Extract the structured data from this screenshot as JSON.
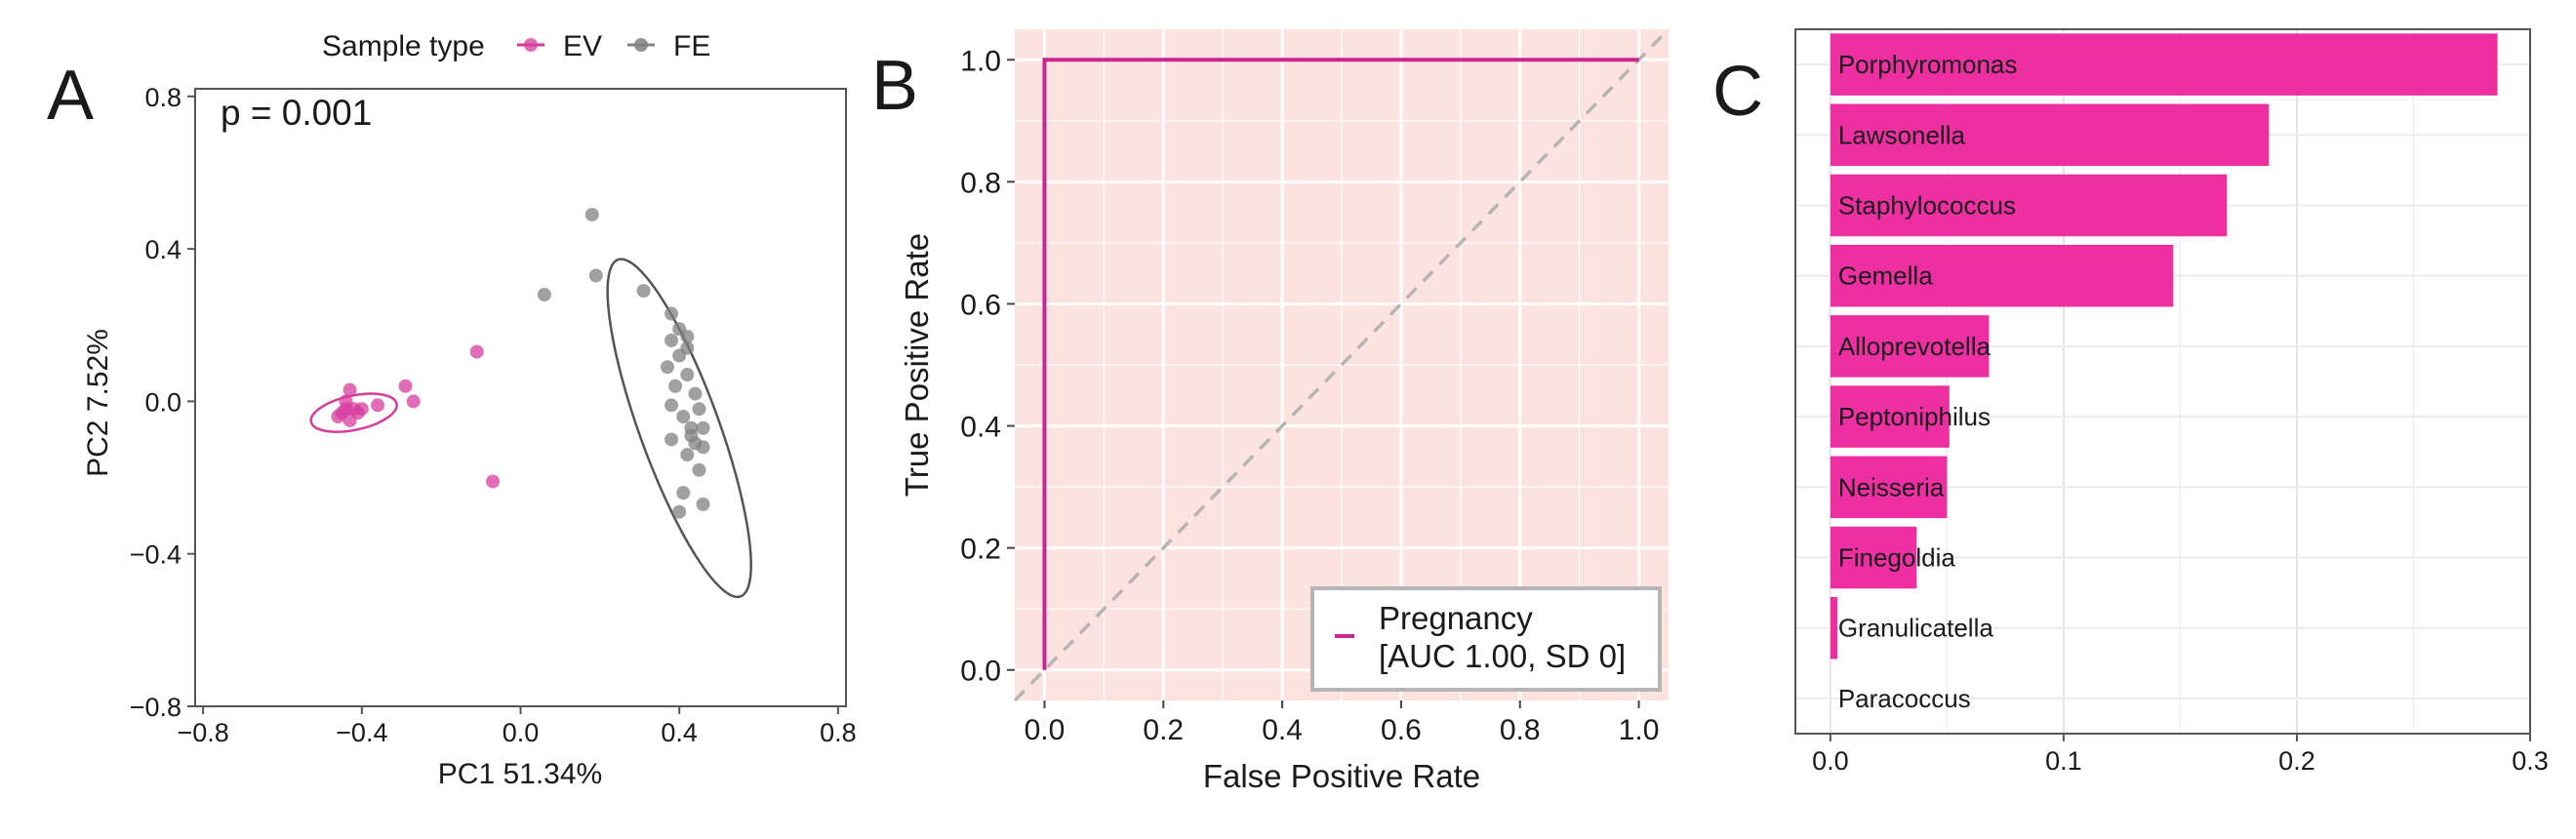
{
  "panels": {
    "A": {
      "letter": "A",
      "chart_data": {
        "type": "scatter",
        "title": "",
        "xlabel": "PC1 51.34%",
        "ylabel": "PC2 7.52%",
        "annotation": "p = 0.001",
        "xlim": [
          -0.82,
          0.82
        ],
        "ylim": [
          -0.8,
          0.82
        ],
        "xticks": [
          -0.8,
          -0.4,
          0.0,
          0.4,
          0.8
        ],
        "xtick_labels": [
          "−0.8",
          "−0.4",
          "0.0",
          "0.4",
          "0.8"
        ],
        "yticks": [
          -0.8,
          -0.4,
          0.0,
          0.4,
          0.8
        ],
        "ytick_labels": [
          "−0.8",
          "−0.4",
          "0.0",
          "0.4",
          "0.8"
        ],
        "grid": false,
        "legend": {
          "title": "Sample type",
          "placement": "top",
          "entries": [
            "EV",
            "FE"
          ]
        },
        "series": [
          {
            "name": "EV",
            "color": "#d63c9e",
            "points": [
              [
                -0.43,
                0.03
              ],
              [
                -0.44,
                0.0
              ],
              [
                -0.42,
                -0.02
              ],
              [
                -0.45,
                -0.03
              ],
              [
                -0.46,
                -0.04
              ],
              [
                -0.43,
                -0.05
              ],
              [
                -0.41,
                -0.03
              ],
              [
                -0.44,
                -0.02
              ],
              [
                -0.4,
                -0.02
              ],
              [
                -0.36,
                -0.01
              ],
              [
                -0.29,
                0.04
              ],
              [
                -0.27,
                0.0
              ],
              [
                -0.11,
                0.13
              ],
              [
                -0.07,
                -0.21
              ]
            ],
            "ellipse": {
              "cx": -0.42,
              "cy": -0.03,
              "rx": 0.11,
              "ry": 0.045,
              "angle_deg": -12
            }
          },
          {
            "name": "FE",
            "color": "#808080",
            "points": [
              [
                0.18,
                0.49
              ],
              [
                0.19,
                0.33
              ],
              [
                0.06,
                0.28
              ],
              [
                0.31,
                0.29
              ],
              [
                0.38,
                0.23
              ],
              [
                0.4,
                0.19
              ],
              [
                0.42,
                0.17
              ],
              [
                0.38,
                0.16
              ],
              [
                0.4,
                0.12
              ],
              [
                0.42,
                0.14
              ],
              [
                0.37,
                0.09
              ],
              [
                0.42,
                0.07
              ],
              [
                0.39,
                0.04
              ],
              [
                0.44,
                0.02
              ],
              [
                0.38,
                -0.01
              ],
              [
                0.45,
                -0.02
              ],
              [
                0.41,
                -0.04
              ],
              [
                0.46,
                -0.07
              ],
              [
                0.43,
                -0.09
              ],
              [
                0.38,
                -0.1
              ],
              [
                0.46,
                -0.12
              ],
              [
                0.42,
                -0.14
              ],
              [
                0.45,
                -0.18
              ],
              [
                0.41,
                -0.24
              ],
              [
                0.46,
                -0.27
              ],
              [
                0.4,
                -0.29
              ],
              [
                0.43,
                -0.07
              ],
              [
                0.44,
                -0.11
              ]
            ],
            "ellipse": {
              "cx": 0.4,
              "cy": -0.07,
              "rx": 0.1,
              "ry": 0.47,
              "angle_deg": -20
            }
          }
        ]
      }
    },
    "B": {
      "letter": "B",
      "chart_data": {
        "type": "line",
        "title": "",
        "xlabel": "False Positive Rate",
        "ylabel": "True Positive Rate",
        "xlim": [
          -0.05,
          1.05
        ],
        "ylim": [
          -0.05,
          1.05
        ],
        "xticks": [
          0.0,
          0.2,
          0.4,
          0.6,
          0.8,
          1.0
        ],
        "xtick_labels": [
          "0.0",
          "0.2",
          "0.4",
          "0.6",
          "0.8",
          "1.0"
        ],
        "yticks": [
          0.0,
          0.2,
          0.4,
          0.6,
          0.8,
          1.0
        ],
        "ytick_labels": [
          "0.0",
          "0.2",
          "0.4",
          "0.6",
          "0.8",
          "1.0"
        ],
        "grid": true,
        "background_color": "#fde3df",
        "series": [
          {
            "name": "Pregnancy",
            "color": "#c9278f",
            "x": [
              0.0,
              0.0,
              1.0
            ],
            "y": [
              0.0,
              1.0,
              1.0
            ]
          },
          {
            "name": "",
            "color": "#b5b5b5",
            "dashed": true,
            "x": [
              -0.05,
              1.05
            ],
            "y": [
              -0.05,
              1.05
            ]
          }
        ],
        "legend": {
          "placement": "bottom-right",
          "entries": [
            {
              "line1": "Pregnancy",
              "line2": "[AUC 1.00, SD 0]",
              "color": "#c9278f"
            }
          ]
        }
      }
    },
    "C": {
      "letter": "C",
      "chart_data": {
        "type": "bar",
        "orientation": "horizontal",
        "title": "",
        "xlabel": "",
        "ylabel": "",
        "color": "#ee2fa1",
        "categories": [
          "Porphyromonas",
          "Lawsonella",
          "Staphylococcus",
          "Gemella",
          "Alloprevotella",
          "Peptoniphilus",
          "Neisseria",
          "Finegoldia",
          "Granulicatella",
          "Paracoccus"
        ],
        "values": [
          0.286,
          0.188,
          0.17,
          0.147,
          0.068,
          0.051,
          0.05,
          0.037,
          0.003,
          0.0
        ],
        "xlim": [
          -0.015,
          0.3
        ],
        "xticks": [
          0.0,
          0.1,
          0.2,
          0.3
        ],
        "xtick_labels": [
          "0.0",
          "0.1",
          "0.2",
          "0.3"
        ],
        "grid": true
      }
    }
  }
}
